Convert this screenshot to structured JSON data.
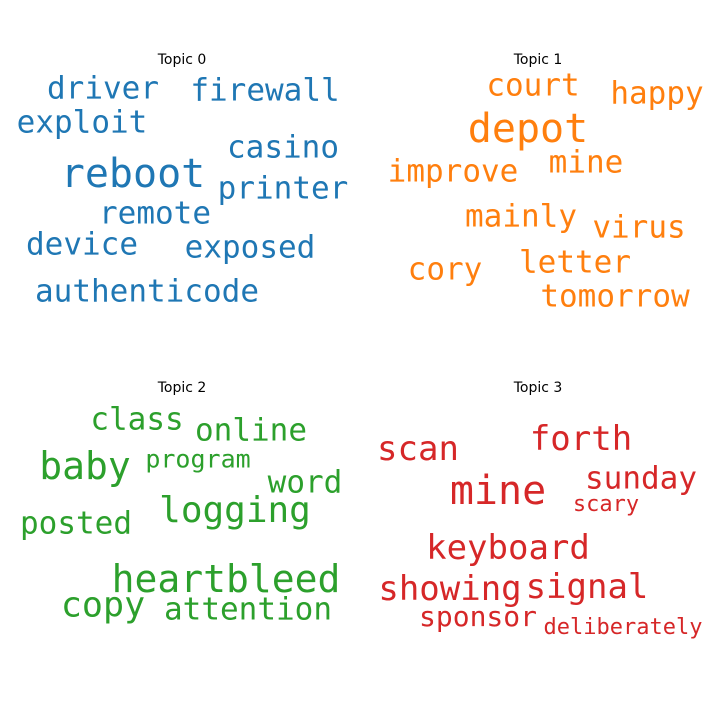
{
  "chart_data": [
    {
      "type": "wordcloud",
      "title": "Topic 0",
      "color": "#1f77b4",
      "words": [
        "driver",
        "firewall",
        "exploit",
        "casino",
        "reboot",
        "printer",
        "remote",
        "device",
        "exposed",
        "authenticode"
      ]
    },
    {
      "type": "wordcloud",
      "title": "Topic 1",
      "color": "#ff7f0e",
      "words": [
        "court",
        "happy",
        "depot",
        "improve",
        "mine",
        "mainly",
        "virus",
        "cory",
        "letter",
        "tomorrow"
      ]
    },
    {
      "type": "wordcloud",
      "title": "Topic 2",
      "color": "#2ca02c",
      "words": [
        "class",
        "online",
        "baby",
        "program",
        "word",
        "posted",
        "logging",
        "heartbleed",
        "copy",
        "attention"
      ]
    },
    {
      "type": "wordcloud",
      "title": "Topic 3",
      "color": "#d62728",
      "words": [
        "forth",
        "scan",
        "mine",
        "sunday",
        "scary",
        "keyboard",
        "showing",
        "signal",
        "sponsor",
        "deliberately"
      ]
    }
  ]
}
